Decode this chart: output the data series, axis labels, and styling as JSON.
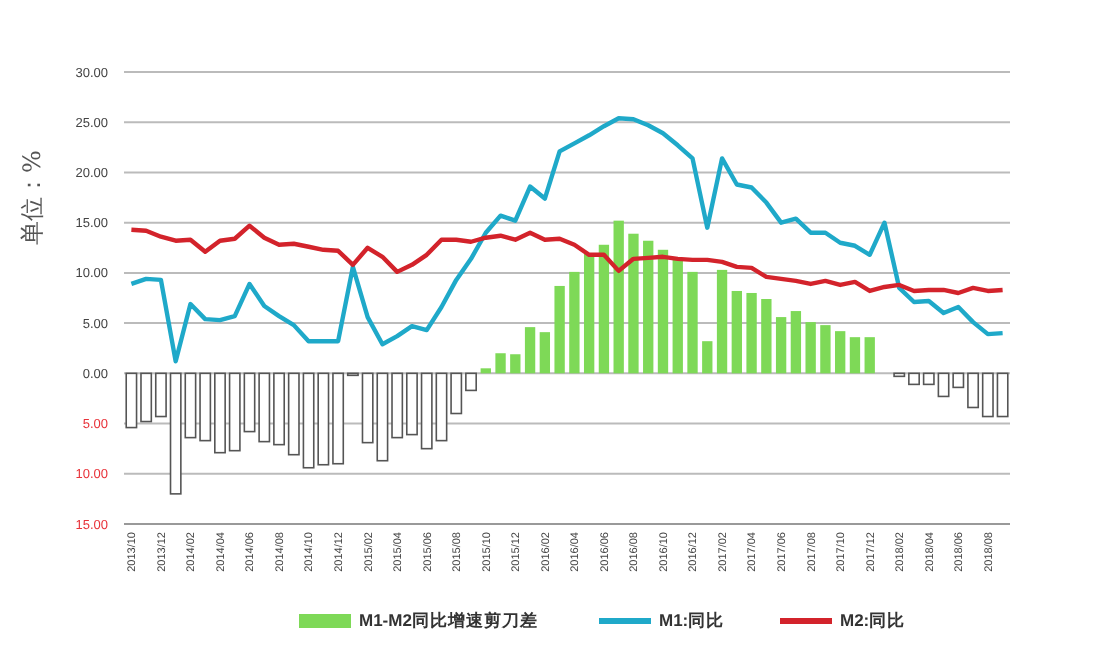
{
  "chart_data": {
    "type": "bar",
    "ylabel": "单位：%",
    "categories": [
      "2013/10",
      null,
      "2013/12",
      null,
      "2014/02",
      null,
      "2014/04",
      null,
      "2014/06",
      null,
      "2014/08",
      null,
      "2014/10",
      null,
      "2014/12",
      null,
      "2015/02",
      null,
      "2015/04",
      null,
      "2015/06",
      null,
      "2015/08",
      null,
      "2015/10",
      null,
      "2015/12",
      null,
      "2016/02",
      null,
      "2016/04",
      null,
      "2016/06",
      null,
      "2016/08",
      null,
      "2016/10",
      null,
      "2016/12",
      null,
      "2017/02",
      null,
      "2017/04",
      null,
      "2017/06",
      null,
      "2017/08",
      null,
      "2017/10",
      null,
      "2017/12",
      null,
      "2018/02",
      null,
      "2018/04",
      null,
      "2018/06",
      null,
      "2018/08",
      null
    ],
    "series": [
      {
        "name": "M1-M2同比增速剪刀差",
        "color": "#7ed957",
        "colors": [
          "#ffffff",
          "#ffffff",
          "#ffffff",
          "#ffffff",
          "#ffffff",
          "#ffffff",
          "#ffffff",
          "#ffffff",
          "#ffffff",
          "#ffffff",
          "#ffffff",
          "#ffffff",
          "#ffffff",
          "#ffffff",
          "#ffffff",
          "#ffffff",
          "#ffffff",
          "#ffffff",
          "#ffffff",
          "#ffffff",
          "#ffffff",
          "#ffffff",
          "#ffffff",
          "#ffffff",
          "#7ed957",
          "#7ed957",
          "#7ed957",
          "#7ed957",
          "#7ed957",
          "#7ed957",
          "#7ed957",
          "#7ed957",
          "#7ed957",
          "#7ed957",
          "#7ed957",
          "#7ed957",
          "#7ed957",
          "#7ed957",
          "#7ed957",
          "#7ed957",
          "#7ed957",
          "#7ed957",
          "#7ed957",
          "#7ed957",
          "#7ed957",
          "#7ed957",
          "#7ed957",
          "#7ed957",
          "#7ed957",
          "#7ed957",
          "#7ed957",
          null,
          "#ffffff",
          "#ffffff",
          "#ffffff",
          "#ffffff",
          "#ffffff",
          "#ffffff",
          "#ffffff",
          "#ffffff"
        ],
        "values": [
          -5.4,
          -4.8,
          -4.3,
          -12.0,
          -6.4,
          -6.7,
          -7.9,
          -7.7,
          -5.8,
          -6.8,
          -7.1,
          -8.1,
          -9.4,
          -9.1,
          -9.0,
          -0.2,
          -6.9,
          -8.7,
          -6.4,
          -6.1,
          -7.5,
          -6.7,
          -4.0,
          -1.7,
          0.5,
          2.0,
          1.9,
          4.6,
          4.1,
          8.7,
          10.1,
          11.9,
          12.8,
          15.2,
          13.9,
          13.2,
          12.3,
          11.3,
          10.1,
          3.2,
          10.3,
          8.2,
          8.0,
          7.4,
          5.6,
          6.2,
          5.1,
          4.8,
          4.2,
          3.6,
          3.6,
          null,
          -0.3,
          -1.1,
          -1.1,
          -2.3,
          -1.4,
          -3.4,
          -4.3,
          -4.3
        ]
      },
      {
        "name": "M1:同比",
        "type": "line",
        "color": "#1fa9c9",
        "values": [
          8.9,
          9.4,
          9.3,
          1.2,
          6.9,
          5.4,
          5.3,
          5.7,
          8.9,
          6.7,
          5.7,
          4.8,
          3.2,
          3.2,
          3.2,
          10.6,
          5.6,
          2.9,
          3.7,
          4.7,
          4.3,
          6.6,
          9.3,
          11.4,
          14.0,
          15.7,
          15.2,
          18.6,
          17.4,
          22.1,
          22.9,
          23.7,
          24.6,
          25.4,
          25.3,
          24.7,
          23.9,
          22.7,
          21.4,
          14.5,
          21.4,
          18.8,
          18.5,
          17.0,
          15.0,
          15.4,
          14.0,
          14.0,
          13.0,
          12.7,
          11.8,
          15.0,
          8.5,
          7.1,
          7.2,
          6.0,
          6.6,
          5.1,
          3.9,
          4.0
        ]
      },
      {
        "name": "M2:同比",
        "type": "line",
        "color": "#d3232b",
        "values": [
          14.3,
          14.2,
          13.6,
          13.2,
          13.3,
          12.1,
          13.2,
          13.4,
          14.7,
          13.5,
          12.8,
          12.9,
          12.6,
          12.3,
          12.2,
          10.8,
          12.5,
          11.6,
          10.1,
          10.8,
          11.8,
          13.3,
          13.3,
          13.1,
          13.5,
          13.7,
          13.3,
          14.0,
          13.3,
          13.4,
          12.8,
          11.8,
          11.8,
          10.2,
          11.4,
          11.5,
          11.6,
          11.4,
          11.3,
          11.3,
          11.1,
          10.6,
          10.5,
          9.6,
          9.4,
          9.2,
          8.9,
          9.2,
          8.8,
          9.1,
          8.2,
          8.6,
          8.8,
          8.2,
          8.3,
          8.3,
          8.0,
          8.5,
          8.2,
          8.3
        ]
      }
    ],
    "ylim": [
      -15,
      30
    ],
    "yticks": [
      {
        "value": -15,
        "label": "15.00"
      },
      {
        "value": -10,
        "label": "10.00"
      },
      {
        "value": -5,
        "label": "5.00"
      },
      {
        "value": 0,
        "label": "0.00"
      },
      {
        "value": 5,
        "label": "5.00"
      },
      {
        "value": 10,
        "label": "10.00"
      },
      {
        "value": 15,
        "label": "15.00"
      },
      {
        "value": 20,
        "label": "20.00"
      },
      {
        "value": 25,
        "label": "25.00"
      },
      {
        "value": 30,
        "label": "30.00"
      }
    ],
    "grid": "y",
    "legend": "bottom",
    "marker": "none",
    "line_style": "solid"
  }
}
